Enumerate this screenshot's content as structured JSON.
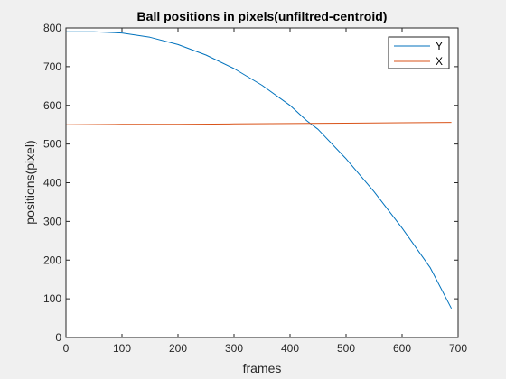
{
  "chart_data": {
    "type": "line",
    "title": "Ball positions in pixels(unfiltred-centroid)",
    "xlabel": "frames",
    "ylabel": "positions(pixel)",
    "xlim": [
      0,
      700
    ],
    "ylim": [
      0,
      800
    ],
    "xticks": [
      "0",
      "100",
      "200",
      "300",
      "400",
      "500",
      "600",
      "700"
    ],
    "yticks": [
      "0",
      "100",
      "200",
      "300",
      "400",
      "500",
      "600",
      "700",
      "800"
    ],
    "grid": false,
    "legend_position": "top-right",
    "series": [
      {
        "name": "Y",
        "color": "#0072bd",
        "x": [
          0,
          50,
          100,
          150,
          200,
          250,
          300,
          350,
          400,
          430,
          450,
          500,
          550,
          600,
          650,
          688
        ],
        "y": [
          790,
          790,
          787,
          776,
          757,
          730,
          695,
          652,
          600,
          560,
          538,
          462,
          377,
          283,
          181,
          75
        ]
      },
      {
        "name": "X",
        "color": "#d95319",
        "x": [
          0,
          100,
          200,
          300,
          400,
          500,
          600,
          688
        ],
        "y": [
          550,
          551,
          551,
          552,
          553,
          554,
          555,
          556
        ]
      }
    ]
  }
}
